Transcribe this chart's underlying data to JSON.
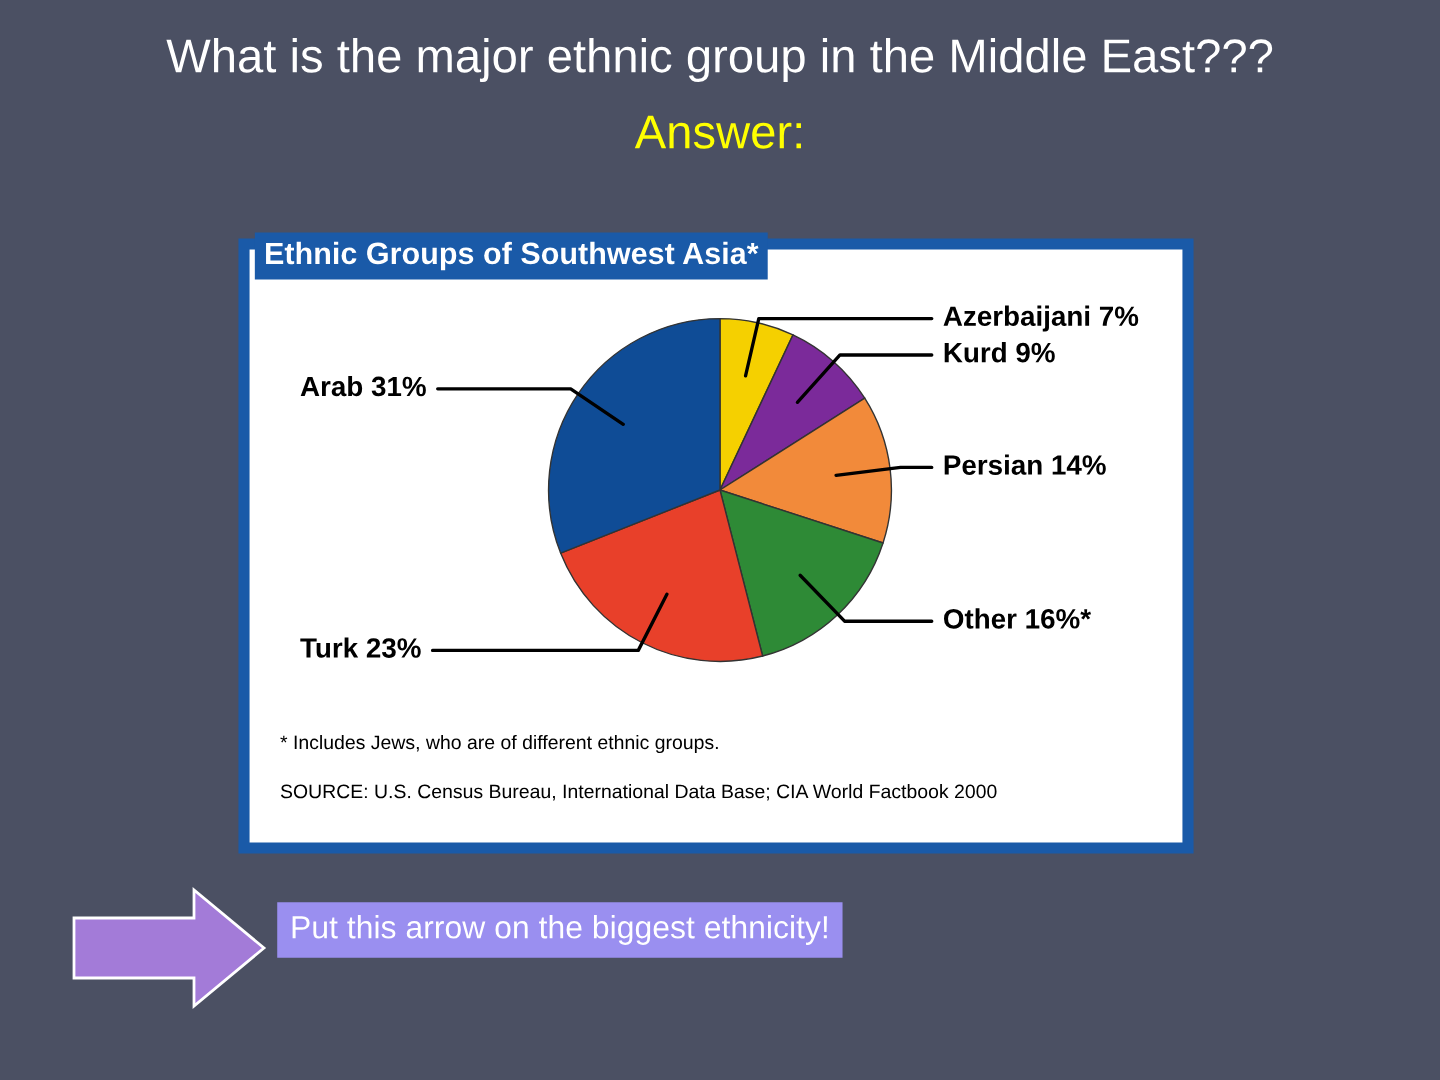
{
  "chart_data": {
    "type": "pie",
    "title": "What is the major ethnic group in the Middle East???",
    "subtitle": "Ethnic Groups of Southwest Asia*",
    "categories": [
      "Azerbaijani",
      "Kurd",
      "Persian",
      "Other",
      "Turk",
      "Arab"
    ],
    "values": [
      7,
      9,
      14,
      16,
      23,
      31
    ],
    "value_labels": [
      "7%",
      "9%",
      "14%",
      "16%*",
      "23%",
      "31%"
    ],
    "colors": [
      "#f5d000",
      "#7b2a9a",
      "#f28a3a",
      "#2e8a36",
      "#e8402a",
      "#0f4c96"
    ],
    "annotations": [
      "Answer:",
      "* Includes Jews, who are of different ethnic groups.",
      "SOURCE: U.S. Census Bureau, International Data Base; CIA World Factbook 2000",
      "Put this arrow on the biggest ethnicity!"
    ]
  }
}
